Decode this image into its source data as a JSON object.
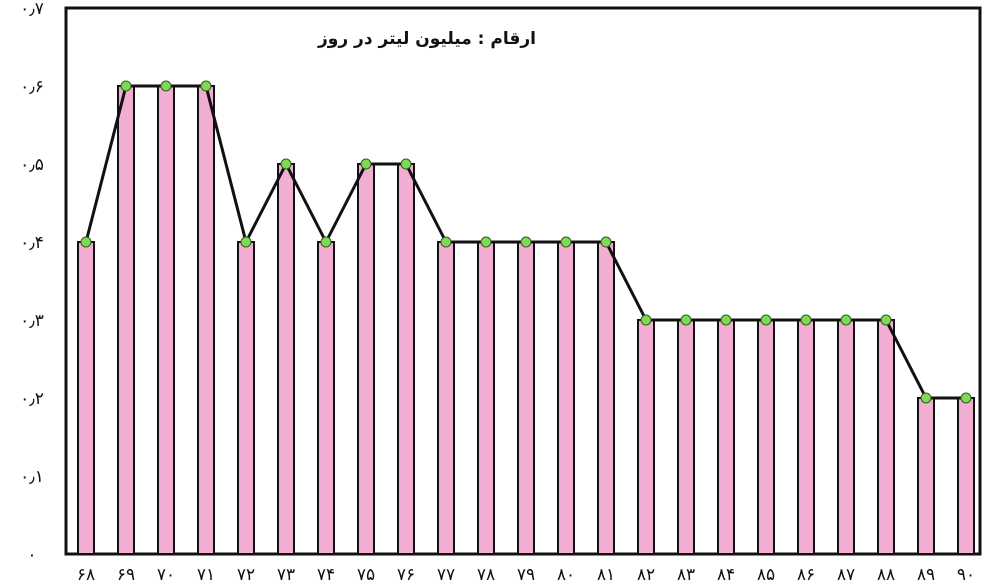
{
  "chart_data": {
    "type": "bar",
    "title": "",
    "unit_label": "ارقام : میلیون لیتر در روز",
    "xlabel": "",
    "ylabel": "",
    "categories": [
      "۶۸",
      "۶۹",
      "۷۰",
      "۷۱",
      "۷۲",
      "۷۳",
      "۷۴",
      "۷۵",
      "۷۶",
      "۷۷",
      "۷۸",
      "۷۹",
      "۸۰",
      "۸۱",
      "۸۲",
      "۸۳",
      "۸۴",
      "۸۵",
      "۸۶",
      "۸۷",
      "۸۸",
      "۸۹",
      "۹۰"
    ],
    "values": [
      0.4,
      0.6,
      0.6,
      0.6,
      0.4,
      0.5,
      0.4,
      0.5,
      0.5,
      0.4,
      0.4,
      0.4,
      0.4,
      0.4,
      0.3,
      0.3,
      0.3,
      0.3,
      0.3,
      0.3,
      0.3,
      0.2,
      0.2
    ],
    "yticks": [
      "۰",
      "۰٫۱",
      "۰٫۲",
      "۰٫۳",
      "۰٫۴",
      "۰٫۵",
      "۰٫۶",
      "۰٫۷"
    ],
    "ylim": [
      0,
      0.7
    ],
    "overlay": "line connecting bar tops with green point markers",
    "grid": false,
    "legend": "none",
    "colors": {
      "bar_fill": "#f2aed2",
      "bar_stroke": "#111111",
      "line": "#111111",
      "marker": "#7ed957"
    }
  }
}
